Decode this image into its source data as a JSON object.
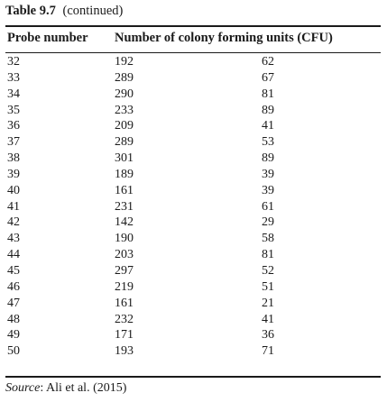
{
  "caption": {
    "table_number": "Table 9.7",
    "continued": "(continued)"
  },
  "headers": {
    "probe": "Probe number",
    "cfu": "Number of colony forming units (CFU)"
  },
  "rows": [
    {
      "probe": "32",
      "cfu1": "192",
      "cfu2": "62"
    },
    {
      "probe": "33",
      "cfu1": "289",
      "cfu2": "67"
    },
    {
      "probe": "34",
      "cfu1": "290",
      "cfu2": "81"
    },
    {
      "probe": "35",
      "cfu1": "233",
      "cfu2": "89"
    },
    {
      "probe": "36",
      "cfu1": "209",
      "cfu2": "41"
    },
    {
      "probe": "37",
      "cfu1": "289",
      "cfu2": "53"
    },
    {
      "probe": "38",
      "cfu1": "301",
      "cfu2": "89"
    },
    {
      "probe": "39",
      "cfu1": "189",
      "cfu2": "39"
    },
    {
      "probe": "40",
      "cfu1": "161",
      "cfu2": "39"
    },
    {
      "probe": "41",
      "cfu1": "231",
      "cfu2": "61"
    },
    {
      "probe": "42",
      "cfu1": "142",
      "cfu2": "29"
    },
    {
      "probe": "43",
      "cfu1": "190",
      "cfu2": "58"
    },
    {
      "probe": "44",
      "cfu1": "203",
      "cfu2": "81"
    },
    {
      "probe": "45",
      "cfu1": "297",
      "cfu2": "52"
    },
    {
      "probe": "46",
      "cfu1": "219",
      "cfu2": "51"
    },
    {
      "probe": "47",
      "cfu1": "161",
      "cfu2": "21"
    },
    {
      "probe": "48",
      "cfu1": "232",
      "cfu2": "41"
    },
    {
      "probe": "49",
      "cfu1": "171",
      "cfu2": "36"
    },
    {
      "probe": "50",
      "cfu1": "193",
      "cfu2": "71"
    }
  ],
  "source": {
    "label": "Source",
    "text": ": Ali et al. (2015)"
  }
}
